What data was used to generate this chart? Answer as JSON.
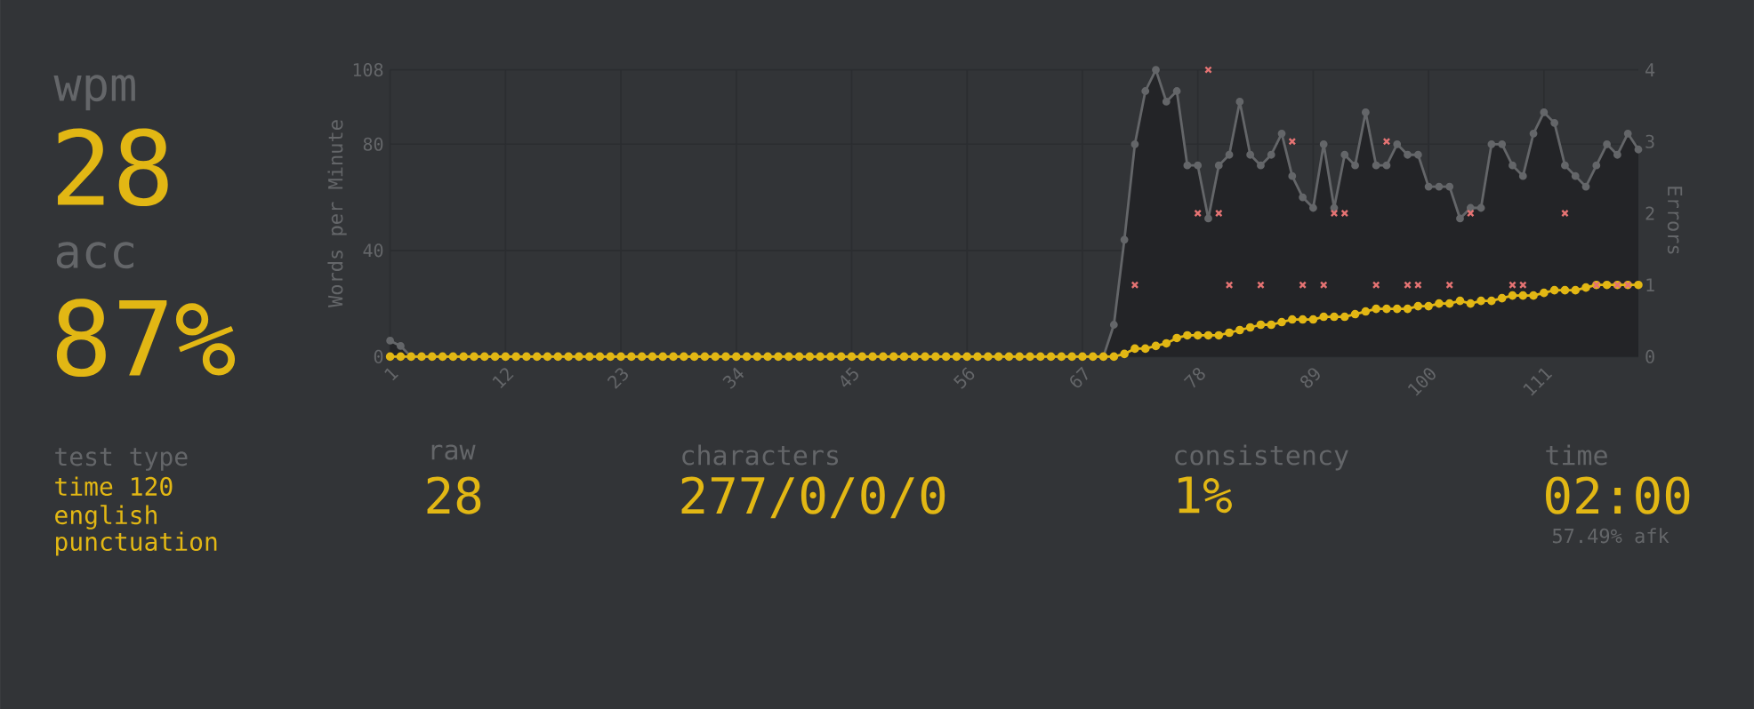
{
  "chart_data": [
    {
      "type": "other",
      "annotations": [
        "wpm",
        "28",
        "acc",
        "87%",
        "test type",
        "time 120",
        "english",
        "punctuation",
        "raw",
        "28",
        "characters",
        "277/0/0/0",
        "consistency",
        "1%",
        "time",
        "02:00",
        "57.49% afk"
      ]
    },
    {
      "type": "line",
      "ylabel": "Words per Minute",
      "y2label": "Errors",
      "grid": true,
      "x": [
        1,
        2,
        3,
        4,
        5,
        6,
        7,
        8,
        9,
        10,
        11,
        12,
        13,
        14,
        15,
        16,
        17,
        18,
        19,
        20,
        21,
        22,
        23,
        24,
        25,
        26,
        27,
        28,
        29,
        30,
        31,
        32,
        33,
        34,
        35,
        36,
        37,
        38,
        39,
        40,
        41,
        42,
        43,
        44,
        45,
        46,
        47,
        48,
        49,
        50,
        51,
        52,
        53,
        54,
        55,
        56,
        57,
        58,
        59,
        60,
        61,
        62,
        63,
        64,
        65,
        66,
        67,
        68,
        69,
        70,
        71,
        72,
        73,
        74,
        75,
        76,
        77,
        78,
        79,
        80,
        81,
        82,
        83,
        84,
        85,
        86,
        87,
        88,
        89,
        90,
        91,
        92,
        93,
        94,
        95,
        96,
        97,
        98,
        99,
        100,
        101,
        102,
        103,
        104,
        105,
        106,
        107,
        108,
        109,
        110,
        111,
        112,
        113,
        114,
        115,
        116,
        117,
        118,
        119,
        120
      ],
      "xlim": [
        1,
        120
      ],
      "xticks": [
        1,
        12,
        23,
        34,
        45,
        56,
        67,
        78,
        89,
        100,
        111
      ],
      "ylim": [
        0,
        108
      ],
      "yticks": [
        0,
        40,
        80,
        108
      ],
      "y2lim": [
        0,
        4
      ],
      "y2ticks": [
        0,
        1,
        2,
        3,
        4
      ],
      "series": [
        {
          "type": "area",
          "color": "#646669",
          "marker": "circle",
          "x": [
            1,
            2,
            3,
            69,
            70,
            71,
            72,
            73,
            74,
            75,
            76,
            77,
            78,
            79,
            80,
            81,
            82,
            83,
            84,
            85,
            86,
            87,
            88,
            89,
            90,
            91,
            92,
            93,
            94,
            95,
            96,
            97,
            98,
            99,
            100,
            101,
            102,
            103,
            104,
            105,
            106,
            107,
            108,
            109,
            110,
            111,
            112,
            113,
            114,
            115,
            116,
            117,
            118,
            119,
            120
          ],
          "values": [
            6,
            4,
            0,
            0,
            12,
            44,
            80,
            100,
            108,
            96,
            100,
            72,
            72,
            52,
            72,
            76,
            96,
            76,
            72,
            76,
            84,
            68,
            60,
            56,
            80,
            56,
            76,
            72,
            92,
            72,
            72,
            80,
            76,
            76,
            64,
            64,
            64,
            52,
            56,
            56,
            80,
            80,
            72,
            68,
            84,
            92,
            88,
            72,
            68,
            64,
            72,
            80,
            76,
            84,
            78
          ]
        },
        {
          "type": "line",
          "color": "#e2b714",
          "marker": "circle",
          "values": [
            0,
            0,
            0,
            0,
            0,
            0,
            0,
            0,
            0,
            0,
            0,
            0,
            0,
            0,
            0,
            0,
            0,
            0,
            0,
            0,
            0,
            0,
            0,
            0,
            0,
            0,
            0,
            0,
            0,
            0,
            0,
            0,
            0,
            0,
            0,
            0,
            0,
            0,
            0,
            0,
            0,
            0,
            0,
            0,
            0,
            0,
            0,
            0,
            0,
            0,
            0,
            0,
            0,
            0,
            0,
            0,
            0,
            0,
            0,
            0,
            0,
            0,
            0,
            0,
            0,
            0,
            0,
            0,
            0,
            0,
            1,
            3,
            3,
            4,
            5,
            7,
            8,
            8,
            8,
            8,
            9,
            10,
            11,
            12,
            12,
            13,
            14,
            14,
            14,
            15,
            15,
            15,
            16,
            17,
            18,
            18,
            18,
            18,
            19,
            19,
            20,
            20,
            21,
            20,
            21,
            21,
            22,
            23,
            23,
            23,
            24,
            25,
            25,
            25,
            26,
            27,
            27,
            27,
            27,
            27
          ]
        },
        {
          "type": "scatter",
          "axis": "y2",
          "color": "#e57373",
          "marker": "cross",
          "x": [
            72,
            78,
            79,
            80,
            81,
            84,
            87,
            88,
            90,
            91,
            92,
            95,
            96,
            98,
            99,
            102,
            104,
            108,
            109,
            113,
            116,
            118,
            119
          ],
          "values": [
            1,
            2,
            4,
            2,
            1,
            1,
            3,
            1,
            1,
            2,
            2,
            1,
            3,
            1,
            1,
            1,
            2,
            1,
            1,
            2,
            1,
            1,
            1
          ]
        }
      ]
    }
  ]
}
